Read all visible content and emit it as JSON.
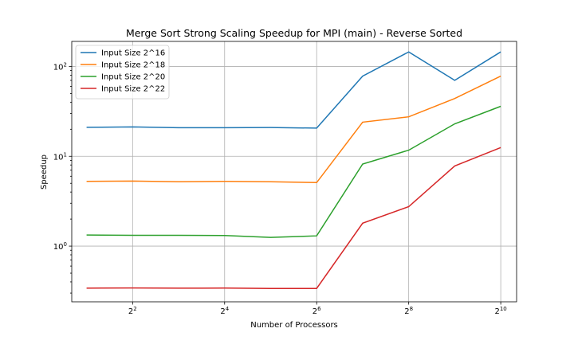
{
  "chart_data": {
    "type": "line",
    "title": "Merge Sort Strong Scaling Speedup for MPI (main) - Reverse Sorted",
    "xlabel": "Number of Processors",
    "ylabel": "Speedup",
    "x_scale": "log2",
    "y_scale": "log10",
    "grid": true,
    "legend_position": "top-left",
    "x": [
      2,
      4,
      8,
      16,
      32,
      64,
      128,
      256,
      512,
      1024
    ],
    "x_ticks": [
      {
        "value": 4,
        "base": "2",
        "exp": "2"
      },
      {
        "value": 16,
        "base": "2",
        "exp": "4"
      },
      {
        "value": 64,
        "base": "2",
        "exp": "6"
      },
      {
        "value": 256,
        "base": "2",
        "exp": "8"
      },
      {
        "value": 1024,
        "base": "2",
        "exp": "10"
      }
    ],
    "y_ticks": [
      {
        "value": 1,
        "base": "10",
        "exp": "0"
      },
      {
        "value": 10,
        "base": "10",
        "exp": "1"
      },
      {
        "value": 100,
        "base": "10",
        "exp": "2"
      }
    ],
    "xlim": [
      1.6,
      1300
    ],
    "ylim": [
      0.24,
      190
    ],
    "series": [
      {
        "name": "Input Size 2^16",
        "color": "#1f77b4",
        "values": [
          21.0,
          21.2,
          20.8,
          20.8,
          20.9,
          20.6,
          78.0,
          145.0,
          70.0,
          145.0
        ]
      },
      {
        "name": "Input Size 2^18",
        "color": "#ff7f0e",
        "values": [
          5.25,
          5.3,
          5.2,
          5.25,
          5.2,
          5.1,
          24.0,
          27.5,
          44.0,
          78.0
        ]
      },
      {
        "name": "Input Size 2^20",
        "color": "#2ca02c",
        "values": [
          1.33,
          1.32,
          1.32,
          1.31,
          1.25,
          1.3,
          8.2,
          11.7,
          23.0,
          36.0
        ]
      },
      {
        "name": "Input Size 2^22",
        "color": "#d62728",
        "values": [
          0.34,
          0.342,
          0.34,
          0.341,
          0.338,
          0.338,
          1.8,
          2.75,
          7.8,
          12.5
        ]
      }
    ]
  }
}
